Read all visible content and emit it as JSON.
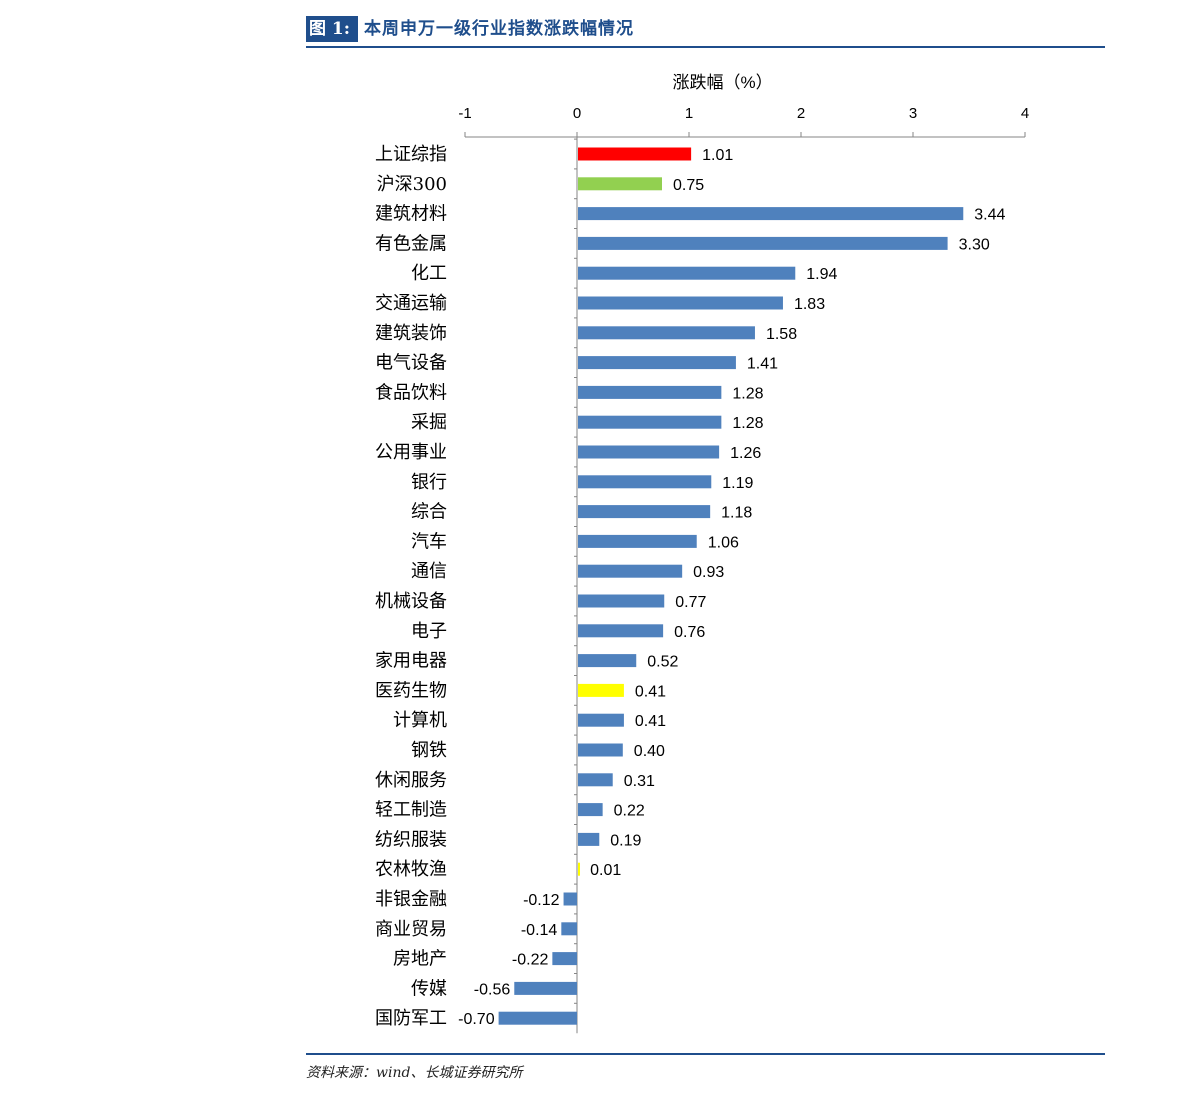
{
  "figure": {
    "label": "图 1:",
    "title": "本周申万一级行业指数涨跌幅情况",
    "source": "资料来源：wind、长城证券研究所"
  },
  "colors": {
    "default_bar": "#4f81bd",
    "highlight_red": "#ff0000",
    "highlight_green": "#92d050",
    "highlight_yellow": "#ffff00",
    "accent": "#1f4e8c"
  },
  "chart_data": {
    "type": "bar",
    "orientation": "horizontal",
    "title": "涨跌幅（%）",
    "axis_position": "top",
    "xlim": [
      -1,
      4
    ],
    "xticks": [
      "-1",
      "0",
      "1",
      "2",
      "3",
      "4"
    ],
    "grid": false,
    "categories": [
      "上证综指",
      "沪深300",
      "建筑材料",
      "有色金属",
      "化工",
      "交通运输",
      "建筑装饰",
      "电气设备",
      "食品饮料",
      "采掘",
      "公用事业",
      "银行",
      "综合",
      "汽车",
      "通信",
      "机械设备",
      "电子",
      "家用电器",
      "医药生物",
      "计算机",
      "钢铁",
      "休闲服务",
      "轻工制造",
      "纺织服装",
      "农林牧渔",
      "非银金融",
      "商业贸易",
      "房地产",
      "传媒",
      "国防军工"
    ],
    "values": [
      1.01,
      0.75,
      3.44,
      3.3,
      1.94,
      1.83,
      1.58,
      1.41,
      1.28,
      1.28,
      1.26,
      1.19,
      1.18,
      1.06,
      0.93,
      0.77,
      0.76,
      0.52,
      0.41,
      0.41,
      0.4,
      0.31,
      0.22,
      0.19,
      0.01,
      -0.12,
      -0.14,
      -0.22,
      -0.56,
      -0.7
    ],
    "value_labels": [
      "1.01",
      "0.75",
      "3.44",
      "3.30",
      "1.94",
      "1.83",
      "1.58",
      "1.41",
      "1.28",
      "1.28",
      "1.26",
      "1.19",
      "1.18",
      "1.06",
      "0.93",
      "0.77",
      "0.76",
      "0.52",
      "0.41",
      "0.41",
      "0.40",
      "0.31",
      "0.22",
      "0.19",
      "0.01",
      "-0.12",
      "-0.14",
      "-0.22",
      "-0.56",
      "-0.70"
    ],
    "bar_colors": [
      "#ff0000",
      "#92d050",
      "#4f81bd",
      "#4f81bd",
      "#4f81bd",
      "#4f81bd",
      "#4f81bd",
      "#4f81bd",
      "#4f81bd",
      "#4f81bd",
      "#4f81bd",
      "#4f81bd",
      "#4f81bd",
      "#4f81bd",
      "#4f81bd",
      "#4f81bd",
      "#4f81bd",
      "#4f81bd",
      "#ffff00",
      "#4f81bd",
      "#4f81bd",
      "#4f81bd",
      "#4f81bd",
      "#4f81bd",
      "#ffff00",
      "#4f81bd",
      "#4f81bd",
      "#4f81bd",
      "#4f81bd",
      "#4f81bd"
    ]
  }
}
